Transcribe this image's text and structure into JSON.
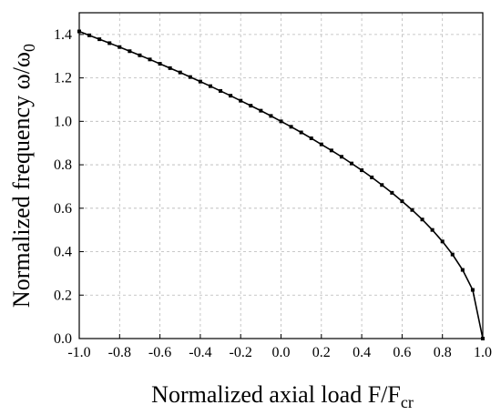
{
  "chart_data": {
    "type": "line",
    "title": "",
    "xlabel": {
      "text": "Normalized axial load F/F",
      "sub": "cr"
    },
    "ylabel": {
      "text": "Normalized frequency ω/ω",
      "sub": "0"
    },
    "xlim": [
      -1.0,
      1.0
    ],
    "ylim": [
      0.0,
      1.5
    ],
    "x_ticks": [
      "-1.0",
      "-0.8",
      "-0.6",
      "-0.4",
      "-0.2",
      "0.0",
      "0.2",
      "0.4",
      "0.6",
      "0.8",
      "1.0"
    ],
    "y_ticks": [
      "0.0",
      "0.2",
      "0.4",
      "0.6",
      "0.8",
      "1.0",
      "1.2",
      "1.4"
    ],
    "grid": true,
    "series": [
      {
        "x": [
          -1.0,
          -0.95,
          -0.9,
          -0.85,
          -0.8,
          -0.75,
          -0.7,
          -0.65,
          -0.6,
          -0.55,
          -0.5,
          -0.45,
          -0.4,
          -0.35,
          -0.3,
          -0.25,
          -0.2,
          -0.15,
          -0.1,
          -0.05,
          0.0,
          0.05,
          0.1,
          0.15,
          0.2,
          0.25,
          0.3,
          0.35,
          0.4,
          0.45,
          0.5,
          0.55,
          0.6,
          0.65,
          0.7,
          0.75,
          0.8,
          0.85,
          0.9,
          0.95,
          1.0
        ],
        "y": [
          1.414,
          1.396,
          1.378,
          1.36,
          1.342,
          1.323,
          1.304,
          1.285,
          1.265,
          1.245,
          1.225,
          1.204,
          1.183,
          1.162,
          1.14,
          1.118,
          1.095,
          1.072,
          1.049,
          1.025,
          1.0,
          0.975,
          0.949,
          0.922,
          0.894,
          0.866,
          0.837,
          0.806,
          0.775,
          0.742,
          0.707,
          0.671,
          0.632,
          0.592,
          0.548,
          0.5,
          0.447,
          0.387,
          0.316,
          0.224,
          0.0
        ],
        "marker": "square",
        "color": "#000000"
      }
    ]
  }
}
